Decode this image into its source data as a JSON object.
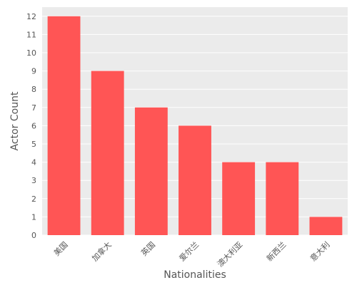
{
  "chart_data": {
    "type": "bar",
    "categories": [
      "美国",
      "加拿大",
      "英国",
      "爱尔兰",
      "澳大利亚",
      "新西兰",
      "意大利"
    ],
    "values": [
      12,
      9,
      7,
      6,
      4,
      4,
      1
    ],
    "xlabel": "Nationalities",
    "ylabel": "Actor Count",
    "ylim": [
      0,
      12.5
    ],
    "yticks": [
      0,
      1,
      2,
      3,
      4,
      5,
      6,
      7,
      8,
      9,
      10,
      11,
      12
    ],
    "grid": true,
    "bar_color": "#FF5555",
    "background_color": "#EBEBEB"
  }
}
